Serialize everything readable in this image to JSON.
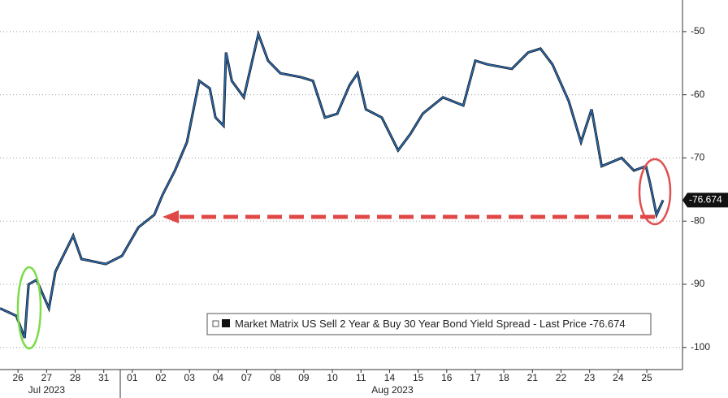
{
  "chart_data": {
    "type": "line",
    "legend": "Market Matrix US Sell 2 Year & Buy 30 Year Bond Yield Spread - Last Price -76.674",
    "last_price_label": {
      "value": -76.674,
      "label": "-76.674"
    },
    "series": [
      {
        "name": "Market Matrix US Sell 2 Year & Buy 30 Year Bond Yield Spread",
        "color": "#2a6db5",
        "x": [
          -0.63,
          -0.06,
          0.23,
          0.37,
          0.65,
          1.08,
          1.31,
          1.93,
          2.22,
          3.07,
          3.64,
          4.21,
          4.77,
          5.06,
          5.49,
          5.91,
          6.34,
          6.71,
          6.91,
          7.19,
          7.28,
          7.48,
          7.9,
          8.41,
          8.75,
          9.18,
          9.89,
          10.32,
          10.74,
          11.17,
          11.6,
          11.88,
          12.17,
          12.73,
          13.3,
          13.73,
          14.16,
          14.87,
          15.58,
          16.0,
          16.43,
          17.28,
          17.85,
          18.28,
          18.7,
          19.27,
          19.7,
          20.07,
          20.42,
          21.12,
          21.55,
          21.97,
          22.11,
          22.34,
          22.57
        ],
        "values": [
          -93.8,
          -95,
          -98.5,
          -90,
          -89.3,
          -93.8,
          -88,
          -82.3,
          -86,
          -86.8,
          -85.5,
          -81,
          -79,
          -75.8,
          -72,
          -67.5,
          -57.8,
          -59,
          -63.6,
          -64.9,
          -53.3,
          -57.8,
          -60.4,
          -50.4,
          -54.6,
          -56.6,
          -57.2,
          -57.8,
          -63.6,
          -63,
          -58.5,
          -56.6,
          -62.3,
          -63.6,
          -68.8,
          -66.2,
          -63,
          -60.4,
          -61.7,
          -54.6,
          -55.2,
          -55.9,
          -53.3,
          -52.7,
          -55.2,
          -61,
          -67.5,
          -62.3,
          -71.3,
          -70,
          -72,
          -71.3,
          -73.9,
          -79,
          -76.674
        ]
      }
    ],
    "xlim": [
      -0.63,
      23.25
    ],
    "xticks": [
      {
        "value": 0,
        "label": "26"
      },
      {
        "value": 1,
        "label": "27"
      },
      {
        "value": 2,
        "label": "28"
      },
      {
        "value": 3,
        "label": "31"
      },
      {
        "value": 4,
        "label": "01"
      },
      {
        "value": 5,
        "label": "02"
      },
      {
        "value": 6,
        "label": "03"
      },
      {
        "value": 7,
        "label": "04"
      },
      {
        "value": 8,
        "label": "07"
      },
      {
        "value": 9,
        "label": "08"
      },
      {
        "value": 10,
        "label": "09"
      },
      {
        "value": 11,
        "label": "10"
      },
      {
        "value": 12,
        "label": "11"
      },
      {
        "value": 13,
        "label": "14"
      },
      {
        "value": 14,
        "label": "15"
      },
      {
        "value": 15,
        "label": "16"
      },
      {
        "value": 16,
        "label": "17"
      },
      {
        "value": 17,
        "label": "18"
      },
      {
        "value": 18,
        "label": "21"
      },
      {
        "value": 19,
        "label": "22"
      },
      {
        "value": 20,
        "label": "23"
      },
      {
        "value": 21,
        "label": "24"
      },
      {
        "value": 22,
        "label": "25"
      }
    ],
    "month_labels": [
      {
        "value": 1,
        "label": "Jul 2023"
      },
      {
        "value": 13.1,
        "label": "Aug 2023"
      }
    ],
    "ylim": [
      -103.5,
      -45
    ],
    "yticks": [
      -50,
      -60,
      -70,
      -80,
      -90,
      -100
    ],
    "grid": true
  }
}
